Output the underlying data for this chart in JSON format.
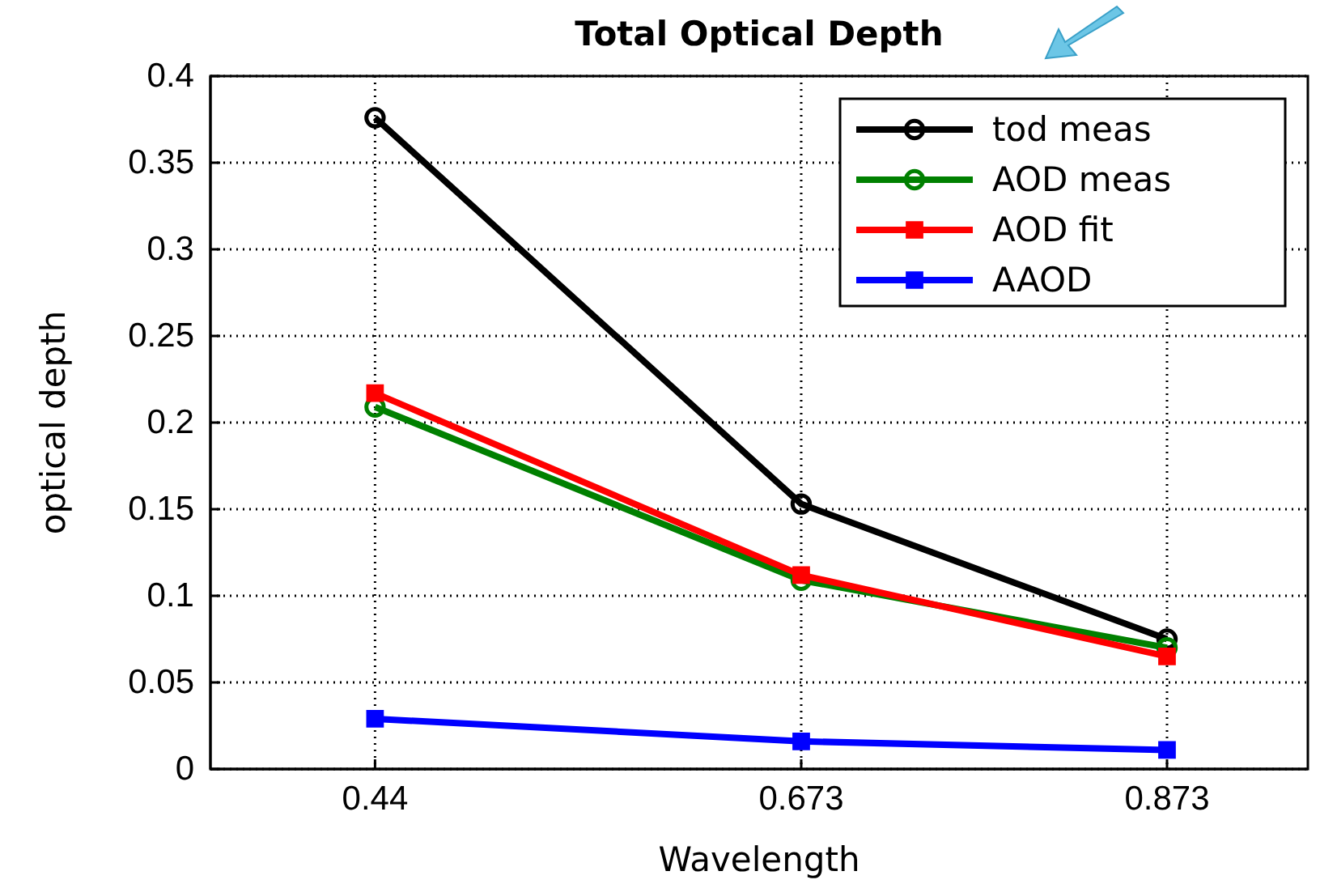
{
  "chart_data": {
    "type": "line",
    "title": "Total Optical Depth",
    "xlabel": "Wavelength",
    "ylabel": "optical depth",
    "x": [
      0.44,
      0.673,
      0.873
    ],
    "series": [
      {
        "name": "tod meas",
        "color": "#000000",
        "marker": "circle",
        "values": [
          0.376,
          0.153,
          0.075
        ]
      },
      {
        "name": "AOD meas",
        "color": "#008000",
        "marker": "circle",
        "values": [
          0.209,
          0.109,
          0.07
        ]
      },
      {
        "name": "AOD fit",
        "color": "#ff0000",
        "marker": "square",
        "values": [
          0.217,
          0.112,
          0.065
        ]
      },
      {
        "name": "AAOD",
        "color": "#0000ff",
        "marker": "square",
        "values": [
          0.029,
          0.016,
          0.011
        ]
      }
    ],
    "xlim": [
      0.35,
      0.95
    ],
    "xticks": [
      0.44,
      0.673,
      0.873
    ],
    "ylim": [
      0,
      0.4
    ],
    "yticks": [
      0,
      0.05,
      0.1,
      0.15,
      0.2,
      0.25,
      0.3,
      0.35,
      0.4
    ],
    "grid": true,
    "legend": "top right",
    "line_style": "solid"
  }
}
